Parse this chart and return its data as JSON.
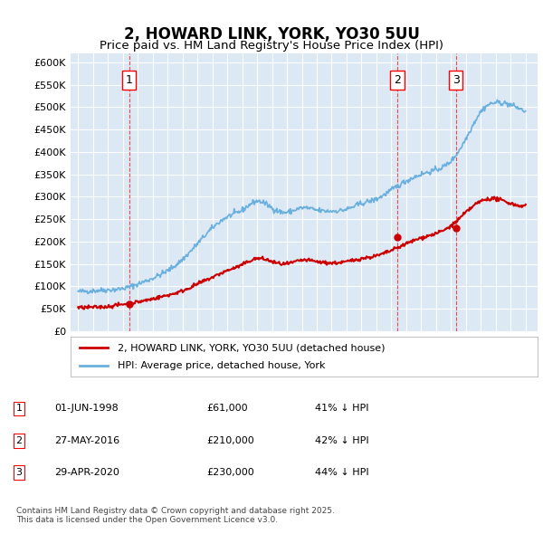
{
  "title": "2, HOWARD LINK, YORK, YO30 5UU",
  "subtitle": "Price paid vs. HM Land Registry's House Price Index (HPI)",
  "ylabel": "",
  "background_color": "#dce9f5",
  "plot_bg_color": "#dce9f5",
  "ylim": [
    0,
    620000
  ],
  "yticks": [
    0,
    50000,
    100000,
    150000,
    200000,
    250000,
    300000,
    350000,
    400000,
    450000,
    500000,
    550000,
    600000
  ],
  "ytick_labels": [
    "£0",
    "£50K",
    "£100K",
    "£150K",
    "£200K",
    "£250K",
    "£300K",
    "£350K",
    "£400K",
    "£450K",
    "£500K",
    "£550K",
    "£600K"
  ],
  "hpi_color": "#6ab0de",
  "price_color": "#cc0000",
  "marker_color": "#cc0000",
  "hpi_marker_color": "#6ab0de",
  "sale_dates": [
    "1998-06-01",
    "2016-05-27",
    "2020-04-29"
  ],
  "sale_prices": [
    61000,
    210000,
    230000
  ],
  "sale_labels": [
    "1",
    "2",
    "3"
  ],
  "annotation_positions": [
    {
      "date": "1998-06-01",
      "y": 555000
    },
    {
      "date": "2016-05-27",
      "y": 555000
    },
    {
      "date": "2020-04-29",
      "y": 555000
    }
  ],
  "legend_label_red": "2, HOWARD LINK, YORK, YO30 5UU (detached house)",
  "legend_label_blue": "HPI: Average price, detached house, York",
  "table_rows": [
    {
      "num": "1",
      "date": "01-JUN-1998",
      "price": "£61,000",
      "hpi": "41% ↓ HPI"
    },
    {
      "num": "2",
      "date": "27-MAY-2016",
      "price": "£210,000",
      "hpi": "42% ↓ HPI"
    },
    {
      "num": "3",
      "date": "29-APR-2020",
      "price": "£230,000",
      "hpi": "44% ↓ HPI"
    }
  ],
  "footer": "Contains HM Land Registry data © Crown copyright and database right 2025.\nThis data is licensed under the Open Government Licence v3.0.",
  "hpi_data": {
    "years": [
      1995,
      1996,
      1997,
      1998,
      1999,
      2000,
      2001,
      2002,
      2003,
      2004,
      2005,
      2006,
      2007,
      2008,
      2009,
      2010,
      2011,
      2012,
      2013,
      2014,
      2015,
      2016,
      2017,
      2018,
      2019,
      2020,
      2021,
      2022,
      2023,
      2024,
      2025
    ],
    "values": [
      88000,
      90000,
      92000,
      95000,
      105000,
      118000,
      135000,
      160000,
      195000,
      230000,
      255000,
      270000,
      290000,
      275000,
      265000,
      275000,
      270000,
      268000,
      272000,
      285000,
      295000,
      315000,
      335000,
      350000,
      360000,
      380000,
      430000,
      490000,
      510000,
      505000,
      490000
    ]
  },
  "price_data": {
    "years": [
      1995,
      1996,
      1997,
      1998,
      1999,
      2000,
      2001,
      2002,
      2003,
      2004,
      2005,
      2006,
      2007,
      2008,
      2009,
      2010,
      2011,
      2012,
      2013,
      2014,
      2015,
      2016,
      2017,
      2018,
      2019,
      2020,
      2021,
      2022,
      2023,
      2024,
      2025
    ],
    "values": [
      52000,
      53000,
      55000,
      60000,
      65000,
      72000,
      80000,
      90000,
      105000,
      120000,
      135000,
      148000,
      162000,
      155000,
      150000,
      158000,
      155000,
      152000,
      155000,
      162000,
      168000,
      180000,
      195000,
      208000,
      218000,
      235000,
      265000,
      290000,
      295000,
      285000,
      280000
    ]
  }
}
